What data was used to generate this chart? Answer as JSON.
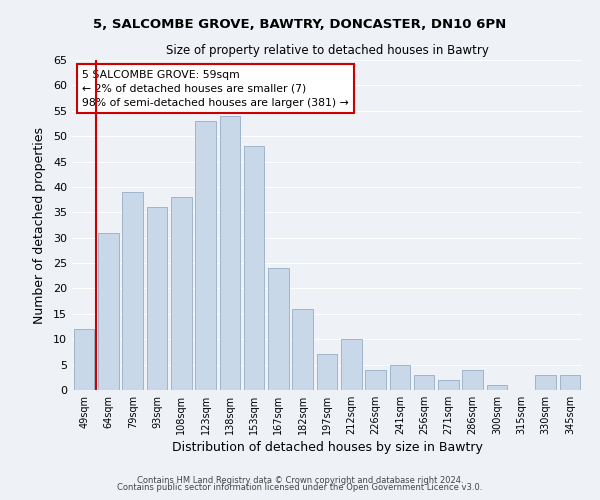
{
  "title_line1": "5, SALCOMBE GROVE, BAWTRY, DONCASTER, DN10 6PN",
  "title_line2": "Size of property relative to detached houses in Bawtry",
  "xlabel": "Distribution of detached houses by size in Bawtry",
  "ylabel": "Number of detached properties",
  "categories": [
    "49sqm",
    "64sqm",
    "79sqm",
    "93sqm",
    "108sqm",
    "123sqm",
    "138sqm",
    "153sqm",
    "167sqm",
    "182sqm",
    "197sqm",
    "212sqm",
    "226sqm",
    "241sqm",
    "256sqm",
    "271sqm",
    "286sqm",
    "300sqm",
    "315sqm",
    "330sqm",
    "345sqm"
  ],
  "values": [
    12,
    31,
    39,
    36,
    38,
    53,
    54,
    48,
    24,
    16,
    7,
    10,
    4,
    5,
    3,
    2,
    4,
    1,
    0,
    3,
    3
  ],
  "bar_color": "#c8d8e8",
  "bar_edge_color": "#a0b4cc",
  "highlight_color": "#cc0000",
  "ylim": [
    0,
    65
  ],
  "yticks": [
    0,
    5,
    10,
    15,
    20,
    25,
    30,
    35,
    40,
    45,
    50,
    55,
    60,
    65
  ],
  "annotation_title": "5 SALCOMBE GROVE: 59sqm",
  "annotation_line1": "← 2% of detached houses are smaller (7)",
  "annotation_line2": "98% of semi-detached houses are larger (381) →",
  "annotation_box_color": "#ffffff",
  "annotation_box_edge": "#cc0000",
  "footer_line1": "Contains HM Land Registry data © Crown copyright and database right 2024.",
  "footer_line2": "Contains public sector information licensed under the Open Government Licence v3.0.",
  "background_color": "#eef2f7",
  "grid_color": "#ffffff"
}
